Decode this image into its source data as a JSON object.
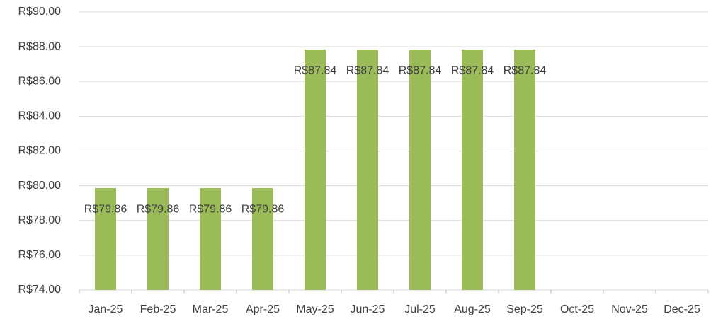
{
  "chart_data": {
    "type": "bar",
    "categories": [
      "Jan-25",
      "Feb-25",
      "Mar-25",
      "Apr-25",
      "May-25",
      "Jun-25",
      "Jul-25",
      "Aug-25",
      "Sep-25",
      "Oct-25",
      "Nov-25",
      "Dec-25"
    ],
    "values": [
      79.86,
      79.86,
      79.86,
      79.86,
      87.84,
      87.84,
      87.84,
      87.84,
      87.84,
      null,
      null,
      null
    ],
    "value_labels": [
      "R$79.86",
      "R$79.86",
      "R$79.86",
      "R$79.86",
      "R$87.84",
      "R$87.84",
      "R$87.84",
      "R$87.84",
      "R$87.84",
      null,
      null,
      null
    ],
    "color": "#9bbb59",
    "ylim": [
      74,
      90
    ],
    "yticks": [
      {
        "value": 74,
        "label": "R$74.00"
      },
      {
        "value": 76,
        "label": "R$76.00"
      },
      {
        "value": 78,
        "label": "R$78.00"
      },
      {
        "value": 80,
        "label": "R$80.00"
      },
      {
        "value": 82,
        "label": "R$82.00"
      },
      {
        "value": 84,
        "label": "R$84.00"
      },
      {
        "value": 86,
        "label": "R$86.00"
      },
      {
        "value": 88,
        "label": "R$88.00"
      },
      {
        "value": 90,
        "label": "R$90.00"
      }
    ],
    "grid": true
  }
}
